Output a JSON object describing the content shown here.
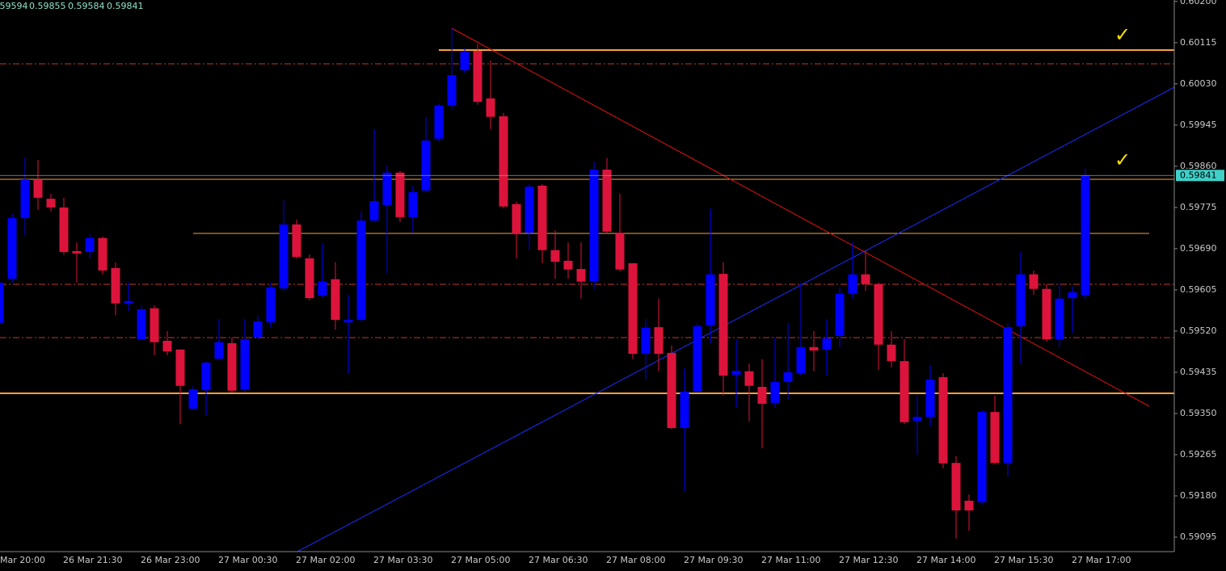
{
  "chart_data": {
    "type": "candlestick",
    "x": [
      "Mar 20:00",
      null,
      null,
      null,
      null,
      null,
      "26 Mar 21:30",
      null,
      null,
      null,
      null,
      null,
      "26 Mar 23:00",
      null,
      null,
      null,
      null,
      null,
      "27 Mar 00:30",
      null,
      null,
      null,
      null,
      null,
      "27 Mar 02:00",
      null,
      null,
      null,
      null,
      null,
      "27 Mar 03:30",
      null,
      null,
      null,
      null,
      null,
      "27 Mar 05:00",
      null,
      null,
      null,
      null,
      null,
      "27 Mar 06:30",
      null,
      null,
      null,
      null,
      null,
      "27 Mar 08:00",
      null,
      null,
      null,
      null,
      null,
      "27 Mar 09:30",
      null,
      null,
      null,
      null,
      null,
      "27 Mar 11:00",
      null,
      null,
      null,
      null,
      null,
      "27 Mar 12:30",
      null,
      null,
      null,
      null,
      null,
      "27 Mar 14:00",
      null,
      null,
      null,
      null,
      null,
      "27 Mar 15:30",
      null,
      null,
      null,
      null,
      null,
      "27 Mar 17:00",
      null
    ],
    "open": [
      null,
      0.59537,
      0.59628,
      0.59753,
      0.59833,
      0.59793,
      0.59775,
      0.59685,
      0.59683,
      0.59712,
      0.5965,
      0.59577,
      0.59503,
      0.59567,
      0.595,
      0.59482,
      0.5936,
      0.59398,
      0.59463,
      0.59495,
      0.594,
      0.59507,
      0.59538,
      0.59608,
      0.5974,
      0.5967,
      0.59593,
      0.59627,
      0.59538,
      0.59543,
      0.59748,
      0.5978,
      0.59847,
      0.59755,
      0.5981,
      0.59917,
      0.59985,
      0.60058,
      0.60098,
      0.6,
      0.59963,
      0.59782,
      0.59723,
      0.5982,
      0.59687,
      0.59665,
      0.59648,
      0.59623,
      0.59853,
      0.59723,
      0.5966,
      0.59473,
      0.59528,
      0.59475,
      0.5932,
      0.59395,
      0.59532,
      0.59638,
      0.5943,
      0.59437,
      0.59405,
      0.59372,
      0.59415,
      0.59433,
      0.59487,
      0.59482,
      0.5951,
      0.59597,
      0.59637,
      0.59617,
      0.59492,
      0.59458,
      0.59335,
      0.59343,
      0.59425,
      0.59248,
      0.5917,
      0.59167,
      0.59353,
      0.59248,
      0.5953,
      0.59637,
      0.59607,
      0.59503,
      0.59588,
      0.59594
    ],
    "high": [
      null,
      0.59637,
      0.59762,
      0.59878,
      0.59873,
      0.59803,
      0.59795,
      0.59703,
      0.5972,
      0.59715,
      0.59662,
      0.5962,
      0.59573,
      0.59573,
      0.5952,
      0.59482,
      0.59407,
      0.59457,
      0.59545,
      0.59507,
      0.59545,
      0.59553,
      0.5962,
      0.5979,
      0.5975,
      0.59678,
      0.597,
      0.59662,
      0.59595,
      0.59767,
      0.59937,
      0.59862,
      0.5985,
      0.5982,
      0.59962,
      0.5999,
      0.60145,
      0.60103,
      0.60112,
      0.60078,
      0.5997,
      0.59787,
      0.59823,
      0.59823,
      0.59728,
      0.59703,
      0.59703,
      0.5987,
      0.59877,
      0.59803,
      0.5966,
      0.59545,
      0.59587,
      0.5949,
      0.59443,
      0.59537,
      0.59773,
      0.59662,
      0.59503,
      0.59453,
      0.59462,
      0.59507,
      0.59537,
      0.5962,
      0.5952,
      0.59545,
      0.5961,
      0.59703,
      0.59687,
      0.5962,
      0.5952,
      0.59503,
      0.59387,
      0.5945,
      0.59433,
      0.59262,
      0.59183,
      0.59357,
      0.59387,
      0.59537,
      0.59683,
      0.59645,
      0.59617,
      0.5962,
      0.59612,
      0.59855
    ],
    "low": [
      null,
      0.59537,
      0.5962,
      0.59717,
      0.5977,
      0.59767,
      0.59678,
      0.5962,
      0.5967,
      0.59637,
      0.59553,
      0.59562,
      0.59503,
      0.5947,
      0.5947,
      0.59328,
      0.59358,
      0.59345,
      0.59462,
      0.59393,
      0.59395,
      0.59503,
      0.59528,
      0.59603,
      0.5967,
      0.59583,
      0.5959,
      0.59523,
      0.59433,
      0.5954,
      0.59745,
      0.5964,
      0.59745,
      0.59723,
      0.59807,
      0.59912,
      0.59978,
      0.60053,
      0.59987,
      0.59937,
      0.59773,
      0.5967,
      0.59687,
      0.5966,
      0.59628,
      0.59628,
      0.59587,
      0.59607,
      0.5972,
      0.59643,
      0.59462,
      0.5942,
      0.59437,
      0.59317,
      0.5919,
      0.59393,
      0.59495,
      0.59387,
      0.59362,
      0.59333,
      0.59278,
      0.59362,
      0.59378,
      0.59428,
      0.59437,
      0.59428,
      0.59487,
      0.59587,
      0.59603,
      0.5944,
      0.59445,
      0.59328,
      0.59265,
      0.59323,
      0.59237,
      0.59092,
      0.59108,
      0.59162,
      0.59245,
      0.5922,
      0.59453,
      0.59595,
      0.59498,
      0.59487,
      0.59517,
      0.59584
    ],
    "close": [
      null,
      0.5962,
      0.59753,
      0.59833,
      0.59795,
      0.59775,
      0.59683,
      0.5968,
      0.59712,
      0.59645,
      0.59577,
      0.59582,
      0.59565,
      0.59497,
      0.59478,
      0.59407,
      0.594,
      0.59455,
      0.59497,
      0.59397,
      0.59503,
      0.5954,
      0.5961,
      0.5974,
      0.59673,
      0.59588,
      0.59622,
      0.59543,
      0.59543,
      0.59748,
      0.59788,
      0.59847,
      0.59755,
      0.59807,
      0.59913,
      0.59985,
      0.60048,
      0.60097,
      0.59993,
      0.59962,
      0.59777,
      0.5972,
      0.59818,
      0.59687,
      0.59663,
      0.59647,
      0.59622,
      0.59853,
      0.59725,
      0.59647,
      0.59473,
      0.59527,
      0.59473,
      0.5932,
      0.59395,
      0.5953,
      0.59637,
      0.59428,
      0.59438,
      0.59407,
      0.5937,
      0.59415,
      0.59435,
      0.59487,
      0.5948,
      0.59505,
      0.59597,
      0.59637,
      0.59617,
      0.59492,
      0.59458,
      0.59332,
      0.59343,
      0.5942,
      0.59247,
      0.5915,
      0.5915,
      0.59353,
      0.59248,
      0.59528,
      0.59637,
      0.59607,
      0.59503,
      0.59587,
      0.596,
      0.59841
    ],
    "up_color": "#0000ff",
    "down_color": "#dc143c",
    "ylim": [
      0.59065,
      0.60203
    ],
    "yticks": [
      {
        "value": 0.602,
        "label": "0.60200"
      },
      0.60115,
      {
        "value": 0.6003,
        "label": "0.60030"
      },
      0.59945,
      {
        "value": 0.5986,
        "label": "0.59860"
      },
      0.59775,
      {
        "value": 0.5969,
        "label": "0.59690"
      },
      0.59605,
      {
        "value": 0.5952,
        "label": "0.59520"
      },
      0.59435,
      {
        "value": 0.5935,
        "label": "0.59350"
      },
      0.59265,
      {
        "value": 0.5918,
        "label": "0.59180"
      },
      0.59095
    ]
  }
}
